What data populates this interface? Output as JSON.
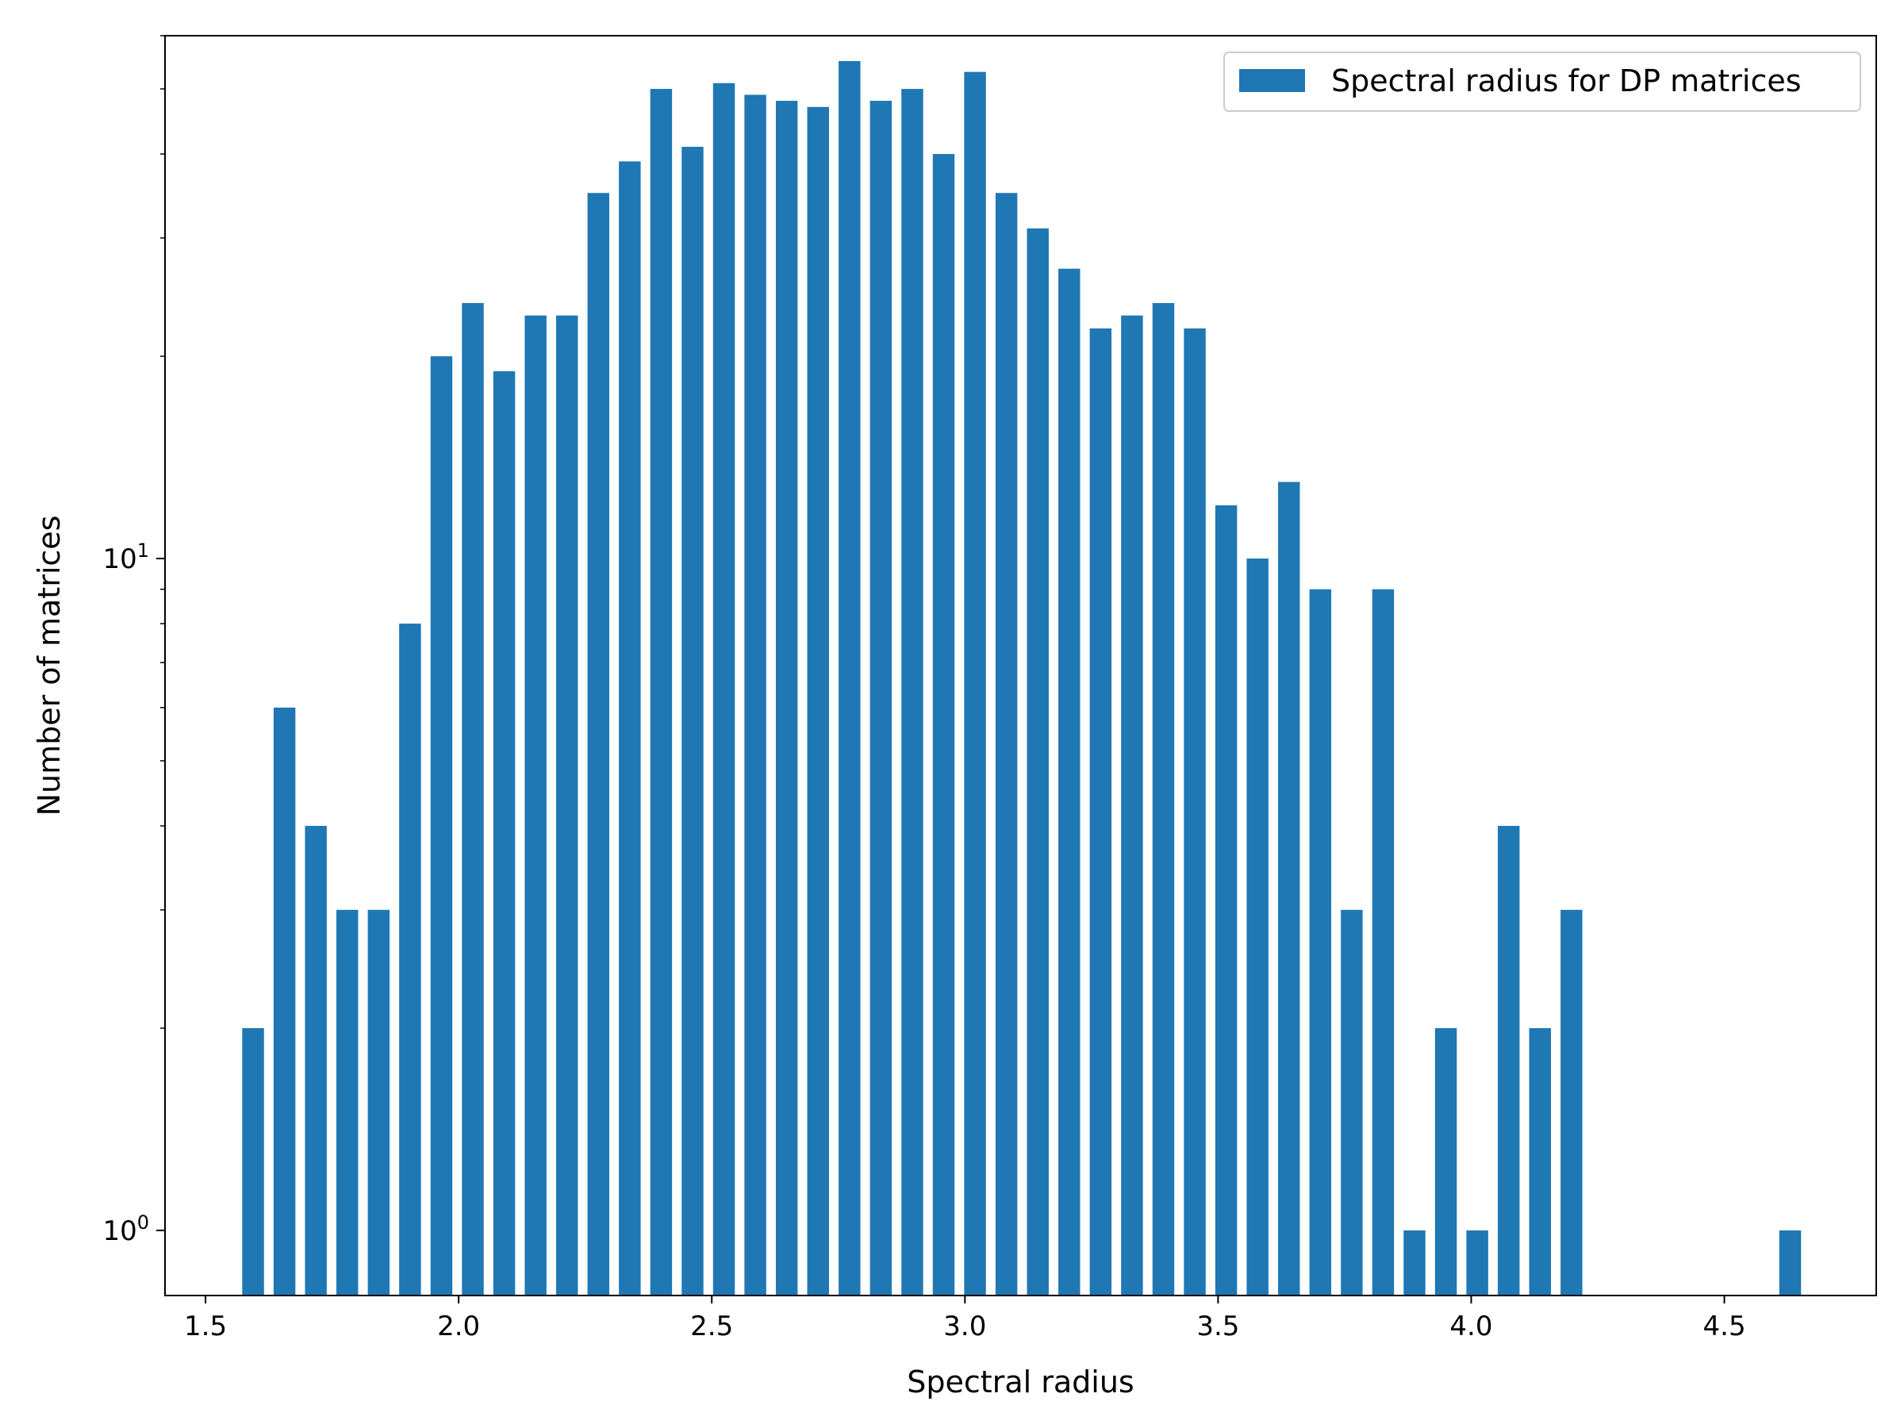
{
  "chart_data": {
    "type": "bar",
    "title": "",
    "xlabel": "Spectral radius",
    "ylabel": "Number of matrices",
    "yscale": "log",
    "xlim": [
      1.42,
      4.8
    ],
    "ylim": [
      0.8,
      60
    ],
    "bar_width": 0.043,
    "bar_color": "#1f77b4",
    "x_ticks": [
      {
        "value": 1.5,
        "label": "1.5"
      },
      {
        "value": 2.0,
        "label": "2.0"
      },
      {
        "value": 2.5,
        "label": "2.5"
      },
      {
        "value": 3.0,
        "label": "3.0"
      },
      {
        "value": 3.5,
        "label": "3.5"
      },
      {
        "value": 4.0,
        "label": "4.0"
      },
      {
        "value": 4.5,
        "label": "4.5"
      }
    ],
    "y_major_ticks": [
      {
        "value": 1,
        "base": "10",
        "exp": "0"
      },
      {
        "value": 10,
        "base": "10",
        "exp": "1"
      }
    ],
    "y_minor_ticks": [
      2,
      3,
      4,
      5,
      6,
      7,
      8,
      9,
      20,
      30,
      40,
      50,
      60
    ],
    "legend": {
      "label": "Spectral radius for DP matrices",
      "position": "top-right"
    },
    "x": [
      1.594,
      1.656,
      1.718,
      1.78,
      1.842,
      1.904,
      1.966,
      2.028,
      2.09,
      2.152,
      2.214,
      2.276,
      2.338,
      2.4,
      2.462,
      2.524,
      2.586,
      2.648,
      2.71,
      2.772,
      2.834,
      2.896,
      2.958,
      3.02,
      3.082,
      3.144,
      3.206,
      3.268,
      3.33,
      3.392,
      3.454,
      3.516,
      3.578,
      3.64,
      3.702,
      3.764,
      3.826,
      3.888,
      3.95,
      4.012,
      4.074,
      4.136,
      4.198,
      4.63
    ],
    "values": [
      2,
      6,
      4,
      3,
      3,
      8,
      20,
      24,
      19,
      23,
      23,
      35,
      39,
      50,
      41,
      51,
      49,
      48,
      47,
      55,
      48,
      50,
      40,
      53,
      35,
      31,
      27,
      22,
      23,
      24,
      22,
      12,
      10,
      13,
      9,
      3,
      9,
      1,
      2,
      1,
      4,
      2,
      3,
      1
    ]
  }
}
